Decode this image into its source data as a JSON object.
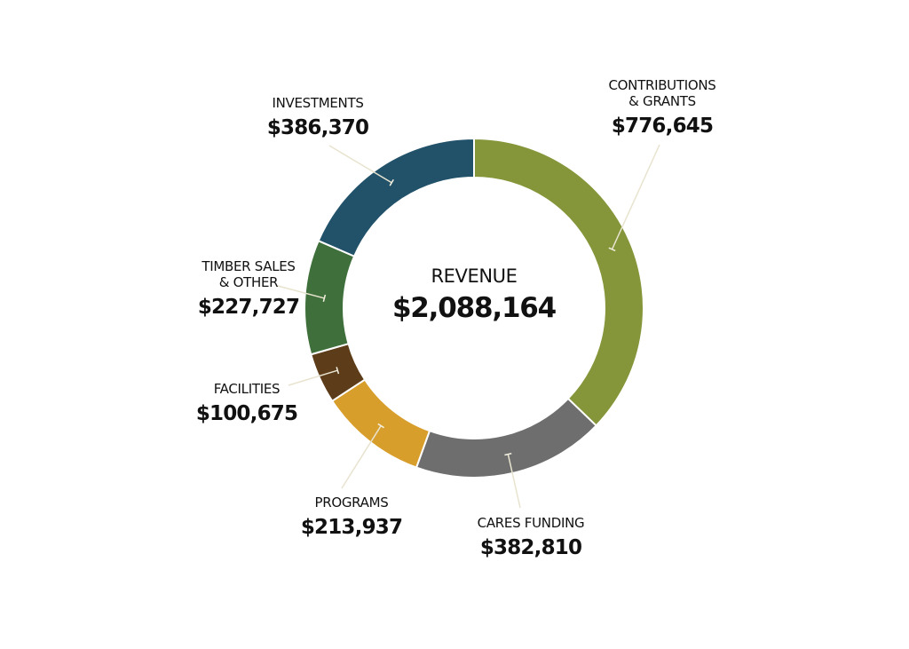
{
  "chart_data": {
    "type": "pie",
    "donut": true,
    "center_title": "REVENUE",
    "center_value": "$2,088,164",
    "slices": [
      {
        "label": [
          "CONTRIBUTIONS",
          "& GRANTS"
        ],
        "value": 776645,
        "value_label": "$776,645",
        "color": "#849639"
      },
      {
        "label": [
          "CARES FUNDING"
        ],
        "value": 382810,
        "value_label": "$382,810",
        "color": "#6e6e6e"
      },
      {
        "label": [
          "PROGRAMS"
        ],
        "value": 213937,
        "value_label": "$213,937",
        "color": "#d89e2b"
      },
      {
        "label": [
          "FACILITIES"
        ],
        "value": 100675,
        "value_label": "$100,675",
        "color": "#5c3c19"
      },
      {
        "label": [
          "TIMBER SALES",
          "& OTHER"
        ],
        "value": 227727,
        "value_label": "$227,727",
        "color": "#3f703b"
      },
      {
        "label": [
          "INVESTMENTS"
        ],
        "value": 386370,
        "value_label": "$386,370",
        "color": "#21526a"
      }
    ]
  }
}
